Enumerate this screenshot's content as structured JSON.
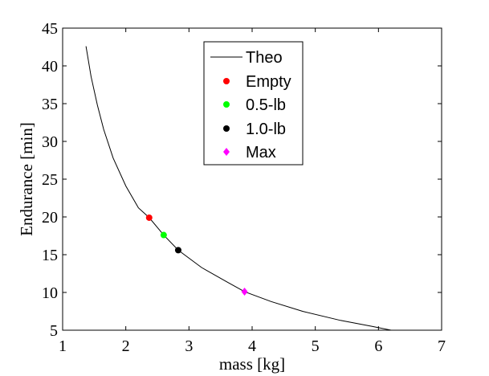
{
  "chart_data": {
    "type": "scatter",
    "title": "",
    "xlabel": "mass [kg]",
    "ylabel": "Endurance [min]",
    "xlim": [
      1,
      7
    ],
    "ylim": [
      5,
      45
    ],
    "xticks": [
      1,
      2,
      3,
      4,
      5,
      6,
      7
    ],
    "yticks": [
      5,
      10,
      15,
      20,
      25,
      30,
      35,
      40,
      45
    ],
    "grid": false,
    "legend_position": "top-center",
    "series": [
      {
        "name": "Theo",
        "style": "line",
        "color": "#000000",
        "x": [
          1.37,
          1.45,
          1.55,
          1.65,
          1.8,
          2.0,
          2.2,
          2.37,
          2.6,
          2.83,
          3.2,
          3.6,
          3.88,
          4.3,
          4.8,
          5.4,
          5.9,
          6.2
        ],
        "y": [
          42.6,
          38.6,
          34.8,
          31.6,
          27.8,
          24.1,
          21.2,
          19.9,
          17.6,
          15.6,
          13.3,
          11.4,
          10.1,
          8.8,
          7.5,
          6.3,
          5.5,
          5.0
        ]
      },
      {
        "name": "Empty",
        "style": "marker",
        "marker": "circle",
        "color": "#ff0000",
        "x": [
          2.37
        ],
        "y": [
          19.9
        ]
      },
      {
        "name": "0.5-lb",
        "style": "marker",
        "marker": "circle",
        "color": "#00ff00",
        "x": [
          2.6
        ],
        "y": [
          17.6
        ]
      },
      {
        "name": "1.0-lb",
        "style": "marker",
        "marker": "circle",
        "color": "#000000",
        "x": [
          2.83
        ],
        "y": [
          15.6
        ]
      },
      {
        "name": "Max",
        "style": "marker",
        "marker": "diamond",
        "color": "#ff00ff",
        "x": [
          3.88
        ],
        "y": [
          10.1
        ]
      }
    ]
  }
}
